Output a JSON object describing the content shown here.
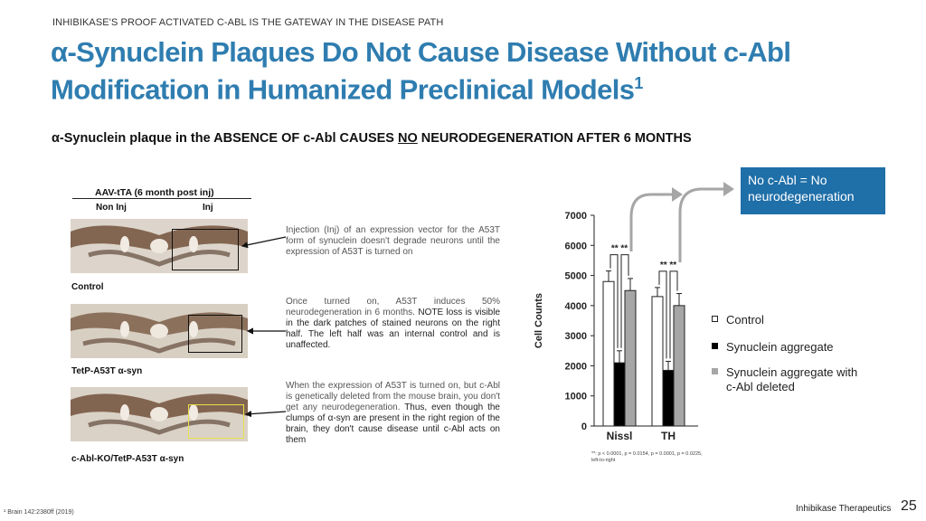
{
  "header": {
    "kicker": "INHIBIKASE'S PROOF ACTIVATED C-ABL IS THE GATEWAY IN THE DISEASE PATH",
    "title_line1": "α-Synuclein Plaques Do Not Cause Disease Without c-Abl",
    "title_line2": "Modification in Humanized Preclinical Models",
    "title_sup": "1"
  },
  "subtitle": {
    "part1": "α-Synuclein plaque in the ABSENCE OF c-Abl CAUSES ",
    "emph": "NO",
    "part2": " NEURODEGENERATION  AFTER 6 MONTHS"
  },
  "figure": {
    "heading": "AAV-tTA (6 month post inj)",
    "col_left": "Non Inj",
    "col_right": "Inj",
    "panels": [
      {
        "label": "Control"
      },
      {
        "label": "TetP-A53T α-syn"
      },
      {
        "label": "c-Abl-KO/TetP-A53T α-syn"
      }
    ]
  },
  "notes": {
    "note1": "Injection (Inj) of an expression vector for the A53T form of synuclein doesn't degrade neurons until the expression of A53T is turned on",
    "note2_plain": "Once turned on, A53T induces 50% neurodegeneration in 6 months.",
    "note2_dark": "NOTE loss is visible in the dark patches of stained neurons on the right half.  The left half was an internal control and is unaffected.",
    "note3_plain": "When the expression of A53T is turned on, but c-Abl is genetically deleted from the mouse brain, you don't get any neurodegeneration.",
    "note3_dark": "Thus, even though the clumps of α-syn are present in the right region of the brain, they don't cause disease until c-Abl acts on them"
  },
  "callout": {
    "line1": "No c-Abl = No",
    "line2": "neurodegeneration"
  },
  "chart_data": {
    "type": "bar",
    "categories": [
      "Nissl",
      "TH"
    ],
    "ylabel": "Cell Counts",
    "ylim": [
      0,
      7000
    ],
    "yticks": [
      "0",
      "1000",
      "2000",
      "3000",
      "4000",
      "5000",
      "6000",
      "7000"
    ],
    "series": [
      {
        "name": "Control",
        "values": [
          4800,
          4300
        ],
        "errors": [
          350,
          300
        ],
        "color": "#ffffff"
      },
      {
        "name": "Synuclein aggregate",
        "values": [
          2100,
          1850
        ],
        "errors": [
          400,
          300
        ],
        "color": "#000000"
      },
      {
        "name": "Synuclein aggregate with c-Abl deleted",
        "values": [
          4500,
          4000
        ],
        "errors": [
          400,
          400
        ],
        "color": "#a6a6a6"
      }
    ],
    "significance": [
      "** **",
      "** **"
    ],
    "stats_note": "**: p < 0.0001, p = 0.0154, p = 0.0001, p = 0.0225, left-to-right"
  },
  "legend": {
    "items": [
      "Control",
      "Synuclein aggregate",
      "Synuclein aggregate with",
      "c-Abl deleted"
    ]
  },
  "footer": {
    "reference": "¹ Brain 142:2380ff (2019)",
    "brand": "Inhibikase Therapeutics",
    "page": "25"
  }
}
